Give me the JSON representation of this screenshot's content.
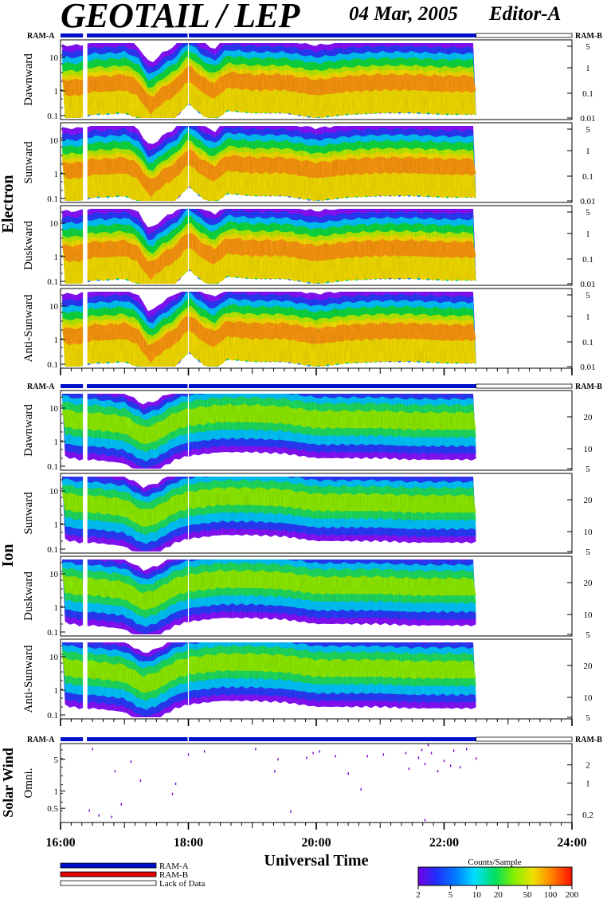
{
  "header": {
    "title": "GEOTAIL / LEP",
    "date": "04 Mar, 2005",
    "editor": "Editor-A"
  },
  "ram": {
    "left": "RAM-A",
    "right": "RAM-B"
  },
  "groups": [
    {
      "name": "Electron",
      "panels": [
        {
          "label": "Dawnward",
          "left_ticks": [
            "10",
            "1",
            "0.1"
          ],
          "right_ticks": [
            "5",
            "1",
            "0.1",
            "0.01"
          ]
        },
        {
          "label": "Sunward",
          "left_ticks": [
            "10",
            "1",
            "0.1"
          ],
          "right_ticks": [
            "5",
            "1",
            "0.1",
            "0.01"
          ]
        },
        {
          "label": "Duskward",
          "left_ticks": [
            "10",
            "1",
            "0.1"
          ],
          "right_ticks": [
            "5",
            "1",
            "0.1",
            "0.01"
          ]
        },
        {
          "label": "Anti-Sunward",
          "left_ticks": [
            "10",
            "1",
            "0.1"
          ],
          "right_ticks": [
            "5",
            "1",
            "0.1",
            "0.01"
          ]
        }
      ]
    },
    {
      "name": "Ion",
      "panels": [
        {
          "label": "Dawnward",
          "left_ticks": [
            "10",
            "1",
            "0.1"
          ],
          "right_ticks": [
            "20",
            "10",
            "5"
          ]
        },
        {
          "label": "Sunward",
          "left_ticks": [
            "10",
            "1",
            "0.1"
          ],
          "right_ticks": [
            "20",
            "10",
            "5"
          ]
        },
        {
          "label": "Duskward",
          "left_ticks": [
            "10",
            "1",
            "0.1"
          ],
          "right_ticks": [
            "20",
            "10",
            "5"
          ]
        },
        {
          "label": "Anti-Sunward",
          "left_ticks": [
            "10",
            "1",
            "0.1"
          ],
          "right_ticks": [
            "20",
            "10",
            "5"
          ]
        }
      ]
    },
    {
      "name": "Solar Wind",
      "panels": [
        {
          "label": "Omni.",
          "left_ticks": [
            "5",
            "1",
            "0.5"
          ],
          "right_ticks": [
            "2",
            "1",
            "0.2"
          ]
        }
      ]
    }
  ],
  "chart_data": {
    "type": "heatmap",
    "xlabel": "Universal Time",
    "x_ticks": [
      "16:00",
      "18:00",
      "20:00",
      "22:00",
      "24:00"
    ],
    "x_range_hours": [
      16,
      24
    ],
    "data_end_hours": 22.5,
    "data_gap_hours": [
      16.35,
      16.42
    ],
    "electron_profile": [
      [
        16.0,
        0.55
      ],
      [
        16.3,
        0.55
      ],
      [
        16.5,
        0.6
      ],
      [
        16.7,
        0.6
      ],
      [
        17.0,
        0.62
      ],
      [
        17.2,
        0.55
      ],
      [
        17.4,
        0.3
      ],
      [
        17.6,
        0.45
      ],
      [
        17.8,
        0.55
      ],
      [
        18.0,
        0.75
      ],
      [
        18.2,
        0.6
      ],
      [
        18.4,
        0.5
      ],
      [
        18.6,
        0.65
      ],
      [
        19.0,
        0.62
      ],
      [
        19.5,
        0.62
      ],
      [
        20.0,
        0.55
      ],
      [
        20.5,
        0.6
      ],
      [
        21.0,
        0.62
      ],
      [
        21.5,
        0.62
      ],
      [
        22.0,
        0.6
      ],
      [
        22.5,
        0.6
      ]
    ],
    "ion_profile": [
      [
        16.0,
        0.65
      ],
      [
        16.3,
        0.6
      ],
      [
        16.5,
        0.6
      ],
      [
        17.0,
        0.55
      ],
      [
        17.3,
        0.4
      ],
      [
        17.5,
        0.45
      ],
      [
        17.8,
        0.6
      ],
      [
        18.0,
        0.65
      ],
      [
        18.5,
        0.7
      ],
      [
        19.0,
        0.7
      ],
      [
        19.5,
        0.68
      ],
      [
        20.0,
        0.62
      ],
      [
        20.5,
        0.62
      ],
      [
        21.0,
        0.62
      ],
      [
        21.5,
        0.6
      ],
      [
        22.0,
        0.6
      ],
      [
        22.5,
        0.6
      ]
    ],
    "solar_wind_points": [
      [
        16.5,
        0.93
      ],
      [
        16.45,
        0.15
      ],
      [
        16.6,
        0.09
      ],
      [
        16.8,
        0.07
      ],
      [
        16.85,
        0.65
      ],
      [
        16.95,
        0.23
      ],
      [
        17.1,
        0.77
      ],
      [
        17.25,
        0.53
      ],
      [
        17.75,
        0.36
      ],
      [
        17.8,
        0.49
      ],
      [
        18.0,
        0.86
      ],
      [
        18.25,
        0.9
      ],
      [
        19.05,
        0.93
      ],
      [
        19.35,
        0.65
      ],
      [
        19.4,
        0.8
      ],
      [
        19.6,
        0.14
      ],
      [
        19.85,
        0.82
      ],
      [
        19.95,
        0.88
      ],
      [
        20.05,
        0.9
      ],
      [
        20.3,
        0.84
      ],
      [
        20.5,
        0.62
      ],
      [
        20.7,
        0.42
      ],
      [
        20.8,
        0.84
      ],
      [
        21.05,
        0.86
      ],
      [
        21.4,
        0.88
      ],
      [
        21.45,
        0.68
      ],
      [
        21.6,
        0.82
      ],
      [
        21.65,
        0.92
      ],
      [
        21.7,
        0.74
      ],
      [
        21.75,
        0.98
      ],
      [
        21.8,
        0.88
      ],
      [
        21.9,
        0.65
      ],
      [
        22.0,
        0.78
      ],
      [
        22.1,
        0.72
      ],
      [
        22.15,
        0.91
      ],
      [
        22.25,
        0.7
      ],
      [
        22.35,
        0.93
      ],
      [
        22.5,
        0.81
      ],
      [
        21.7,
        0.03
      ]
    ],
    "colorbar": {
      "title": "Counts/Sample",
      "ticks": [
        "2",
        "5",
        "10",
        "20",
        "50",
        "100",
        "200"
      ]
    },
    "legend": [
      {
        "label": "RAM-A",
        "color": "#0010c8"
      },
      {
        "label": "RAM-B",
        "color": "#e00000"
      },
      {
        "label": "Lack of Data",
        "color": "#ffffff"
      }
    ]
  }
}
